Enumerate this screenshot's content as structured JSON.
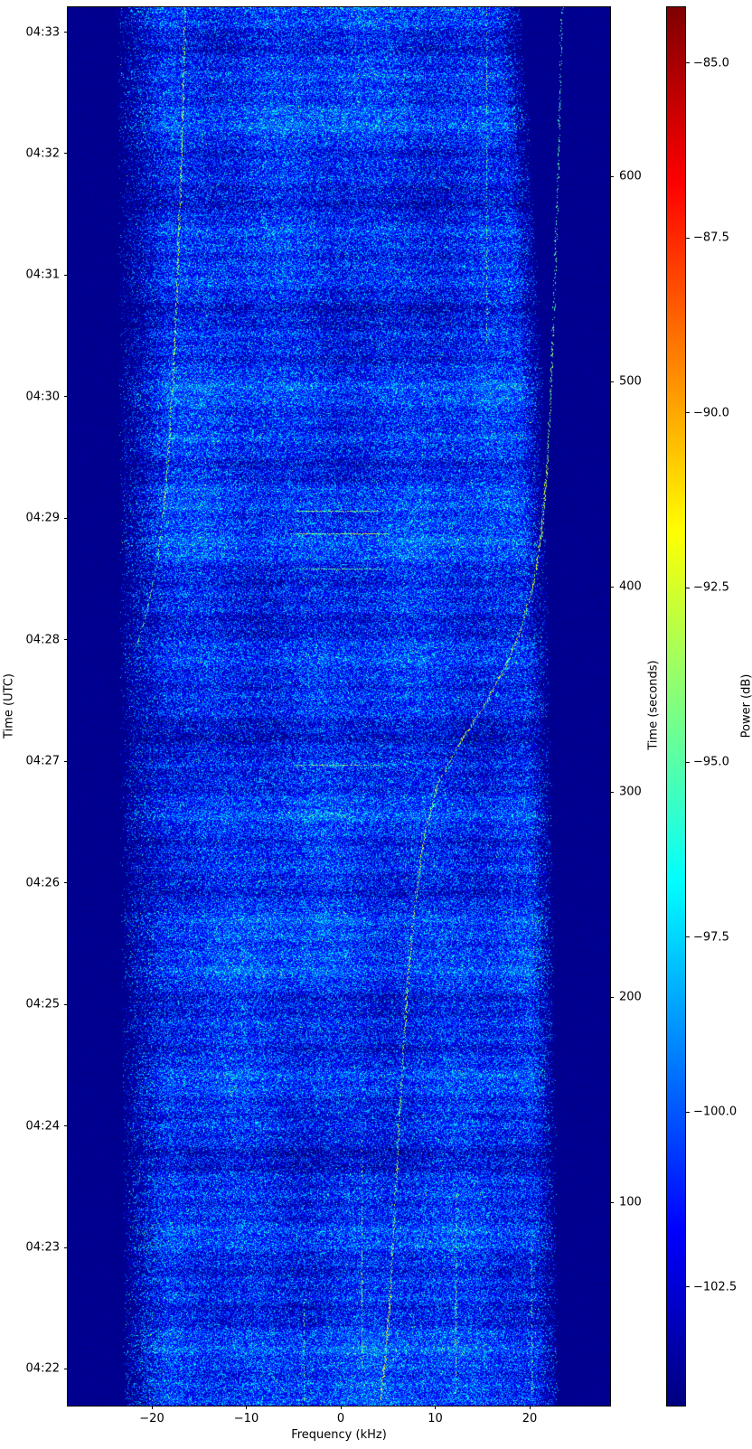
{
  "chart_data": {
    "type": "heatmap",
    "subtype": "radio-spectrogram-waterfall",
    "title": "",
    "xlabel": "Frequency (kHz)",
    "left_axis_label": "Time (UTC)",
    "right_axis_label": "Time (seconds)",
    "colorbar_label": "Power (dB)",
    "colormap": "jet",
    "grid": false,
    "x_ticks_khz": [
      -20,
      -10,
      0,
      10,
      20
    ],
    "x_tick_labels": [
      "−20",
      "−10",
      "0",
      "10",
      "20"
    ],
    "x_range_khz": [
      -28.9,
      28.5
    ],
    "left_tick_labels_utc": [
      "04:33",
      "04:32",
      "04:31",
      "04:30",
      "04:29",
      "04:28",
      "04:27",
      "04:26",
      "04:25",
      "04:24",
      "04:23",
      "04:22"
    ],
    "right_ticks_seconds": [
      600,
      500,
      400,
      300,
      200,
      100
    ],
    "right_tick_labels": [
      "600",
      "500",
      "400",
      "300",
      "200",
      "100"
    ],
    "time_axis_range_seconds": [
      1.5,
      686
    ],
    "time_direction": "increases-upward",
    "colorbar_ticks_db": [
      -85.0,
      -87.5,
      -90.0,
      -92.5,
      -95.0,
      -97.5,
      -100.0,
      -102.5
    ],
    "colorbar_tick_labels": [
      "−85.0",
      "−87.5",
      "−90.0",
      "−92.5",
      "−95.0",
      "−97.5",
      "−100.0",
      "−102.5"
    ],
    "colorbar_range_db": [
      -104.2,
      -84.2
    ],
    "noise_floor_db": -103.5,
    "background_level_db": -104.2,
    "passband": {
      "left_edge_sec_khz": [
        [
          686,
          -23.8
        ],
        [
          400,
          -23.5
        ],
        [
          200,
          -23.3
        ],
        [
          4,
          -23.1
        ]
      ],
      "right_edge_sec_khz": [
        [
          686,
          19.1
        ],
        [
          576,
          20.7
        ],
        [
          488,
          21.6
        ],
        [
          378,
          22.1
        ],
        [
          246,
          22.5
        ],
        [
          113,
          22.9
        ],
        [
          4,
          23.1
        ]
      ]
    },
    "features": {
      "doppler_trace_sec_khz": [
        [
          686,
          23.4
        ],
        [
          607,
          23.0
        ],
        [
          519,
          22.4
        ],
        [
          457,
          21.8
        ],
        [
          426,
          21.2
        ],
        [
          402,
          20.4
        ],
        [
          382,
          19.2
        ],
        [
          362,
          17.5
        ],
        [
          342,
          15.1
        ],
        [
          324,
          12.5
        ],
        [
          304,
          10.2
        ],
        [
          276,
          8.7
        ],
        [
          245,
          7.8
        ],
        [
          210,
          7.1
        ],
        [
          175,
          6.6
        ],
        [
          135,
          6.1
        ],
        [
          91,
          5.6
        ],
        [
          47,
          5.1
        ],
        [
          16,
          4.5
        ],
        [
          4,
          4.2
        ]
      ],
      "doppler_visibility": [
        {
          "sec": [
            4,
            60
          ],
          "level": 1.0
        },
        {
          "sec": [
            60,
            170
          ],
          "level": 0.65
        },
        {
          "sec": [
            170,
            310
          ],
          "level": 0.8
        },
        {
          "sec": [
            310,
            460
          ],
          "level": 0.85
        },
        {
          "sec": [
            460,
            540
          ],
          "level": 0.5
        },
        {
          "sec": [
            540,
            686
          ],
          "level": 0.35
        }
      ],
      "secondary_trace_sec_khz": [
        [
          686,
          -16.5
        ],
        [
          607,
          -16.9
        ],
        [
          554,
          -17.3
        ],
        [
          501,
          -17.8
        ],
        [
          466,
          -18.3
        ],
        [
          439,
          -18.8
        ],
        [
          413,
          -19.4
        ],
        [
          395,
          -20.2
        ],
        [
          380,
          -21.1
        ],
        [
          372,
          -21.7
        ]
      ],
      "secondary_visibility": [
        {
          "sec": [
            440,
            686
          ],
          "level": 0.75
        },
        {
          "sec": [
            372,
            440
          ],
          "level": 0.45
        }
      ],
      "vertical_carriers": [
        {
          "khz": 15.4,
          "sec": [
            519,
            686
          ],
          "level": 0.35
        },
        {
          "khz": 12.2,
          "sec": [
            52,
            110
          ],
          "level": 0.3
        },
        {
          "khz": 12.2,
          "sec": [
            4,
            52
          ],
          "level": 0.6
        },
        {
          "khz": 2.2,
          "sec": [
            18,
            78
          ],
          "level": 0.55
        },
        {
          "khz": 2.2,
          "sec": [
            78,
            130
          ],
          "level": 0.3
        },
        {
          "khz": -3.9,
          "sec": [
            4,
            52
          ],
          "level": 0.3
        },
        {
          "khz": 20.2,
          "sec": [
            4,
            78
          ],
          "level": 0.3
        }
      ],
      "horizontal_bursts": [
        {
          "sec": 437,
          "khz": [
            -4.7,
            4.2
          ],
          "level": 0.85
        },
        {
          "sec": 426,
          "khz": [
            -5.4,
            4.9
          ],
          "level": 0.95
        },
        {
          "sec": 409,
          "khz": [
            -4.5,
            4.6
          ],
          "level": 0.5
        },
        {
          "sec": 313,
          "khz": [
            -4.8,
            4.1
          ],
          "level": 0.8
        }
      ]
    }
  },
  "colors": {
    "figure_background": "#ffffff",
    "axes_edge": "#000000",
    "text": "#000000",
    "deep_background": "#000080",
    "noise_base": "#0030ff",
    "speckle_bright": "#00e0ff"
  }
}
